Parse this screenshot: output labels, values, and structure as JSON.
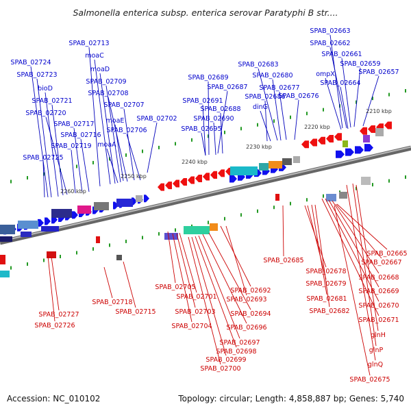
{
  "title": "Salmonella enterica subsp. enterica serovar Paratyphi B str....",
  "footer": {
    "accession": "Accession: NC_010102",
    "topology": "Topology: circular; Length: 4,858,887 bp; Genes: 5,740"
  },
  "colors": {
    "forward_label": "#0000cc",
    "reverse_label": "#cc0000",
    "forward_gene": "#1010ee",
    "reverse_gene": "#ee1010",
    "backbone": "#888888",
    "tick": "#229922"
  },
  "tick_labels": [
    "2210 kbp",
    "2220 kbp",
    "2230 kbp",
    "2240 kbp",
    "2250 kbp",
    "2260 kbp"
  ],
  "forward_labels": [
    "SPAB_02663",
    "SPAB_02662",
    "SPAB_02661",
    "SPAB_02659",
    "SPAB_02657",
    "ompX",
    "SPAB_02664",
    "SPAB_02683",
    "SPAB_02680",
    "SPAB_02677",
    "SPAB_02676",
    "SPAB_02686",
    "dinG",
    "SPAB_02689",
    "SPAB_02687",
    "SPAB_02691",
    "SPAB_02688",
    "SPAB_02690",
    "SPAB_02695",
    "SPAB_02702",
    "SPAB_02713",
    "moaC",
    "moaD",
    "SPAB_02709",
    "SPAB_02708",
    "SPAB_02707",
    "moaE",
    "SPAB_02706",
    "moaA",
    "SPAB_02724",
    "SPAB_02723",
    "bioD",
    "SPAB_02721",
    "SPAB_02720",
    "SPAB_02717",
    "SPAB_02716",
    "SPAB_02719",
    "SPAB_02725"
  ],
  "reverse_labels": [
    "SPAB_02665",
    "SPAB_02667",
    "SPAB_02668",
    "SPAB_02669",
    "SPAB_02670",
    "SPAB_02671",
    "glnH",
    "glnP",
    "glnQ",
    "SPAB_02675",
    "SPAB_02685",
    "SPAB_02678",
    "SPAB_02679",
    "SPAB_02681",
    "SPAB_02682",
    "SPAB_02692",
    "SPAB_02693",
    "SPAB_02694",
    "SPAB_02696",
    "SPAB_02697",
    "SPAB_02698",
    "SPAB_02699",
    "SPAB_02700",
    "SPAB_02705",
    "SPAB_02701",
    "SPAB_02703",
    "SPAB_02704",
    "SPAB_02718",
    "SPAB_02715",
    "SPAB_02727",
    "SPAB_02726"
  ]
}
